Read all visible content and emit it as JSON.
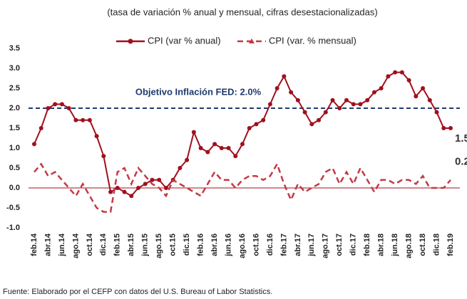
{
  "chart_data": {
    "type": "line",
    "subtitle": "(tasa de variación % anual y mensual, cifras desestacionalizadas)",
    "source": "Fuente: Elaborado por el CEFP con datos del U.S. Bureau of Labor Statistics.",
    "categories": [
      "feb.14",
      null,
      "abr.14",
      null,
      "jun.14",
      null,
      "ago.14",
      null,
      "oct.14",
      null,
      "dic.14",
      null,
      "feb.15",
      null,
      "abr.15",
      null,
      "jun.15",
      null,
      "ago.15",
      null,
      "oct.15",
      null,
      "dic.15",
      null,
      "feb.16",
      null,
      "abr.16",
      null,
      "jun.16",
      null,
      "ago.16",
      null,
      "oct.16",
      null,
      "dic.16",
      null,
      "feb.17",
      null,
      "abr.17",
      null,
      "jun.17",
      null,
      "ago.17",
      null,
      "oct.17",
      null,
      "dic.17",
      null,
      "feb.18",
      null,
      "abr.18",
      null,
      "jun.18",
      null,
      "ago.18",
      null,
      "oct.18",
      null,
      "dic.18",
      null,
      "feb.19"
    ],
    "series": [
      {
        "name": "CPI (var % anual)",
        "color": "#a0101e",
        "dashed": false,
        "markers": true,
        "values": [
          1.1,
          1.5,
          2.0,
          2.1,
          2.1,
          2.0,
          1.7,
          1.7,
          1.7,
          1.3,
          0.8,
          -0.1,
          0.0,
          -0.1,
          -0.2,
          0.0,
          0.1,
          0.2,
          0.2,
          0.0,
          0.2,
          0.5,
          0.7,
          1.4,
          1.0,
          0.9,
          1.1,
          1.0,
          1.0,
          0.8,
          1.1,
          1.5,
          1.6,
          1.7,
          2.1,
          2.5,
          2.8,
          2.4,
          2.2,
          1.9,
          1.6,
          1.7,
          1.9,
          2.2,
          2.0,
          2.2,
          2.1,
          2.1,
          2.2,
          2.4,
          2.5,
          2.8,
          2.9,
          2.9,
          2.7,
          2.3,
          2.5,
          2.2,
          1.9,
          1.5,
          1.5
        ]
      },
      {
        "name": "CPI (var. % mensual)",
        "color": "#c23a44",
        "dashed": true,
        "markers": false,
        "values": [
          0.4,
          0.6,
          0.3,
          0.4,
          0.2,
          0.0,
          -0.2,
          0.1,
          -0.2,
          -0.5,
          -0.6,
          -0.6,
          0.4,
          0.5,
          0.1,
          0.5,
          0.3,
          0.1,
          0.0,
          -0.2,
          0.2,
          0.1,
          0.0,
          -0.1,
          -0.2,
          0.1,
          0.4,
          0.2,
          0.2,
          0.0,
          0.2,
          0.3,
          0.3,
          0.2,
          0.3,
          0.6,
          0.1,
          -0.3,
          0.1,
          -0.1,
          0.0,
          0.1,
          0.4,
          0.5,
          0.1,
          0.4,
          0.1,
          0.5,
          0.2,
          -0.1,
          0.2,
          0.2,
          0.1,
          0.2,
          0.2,
          0.1,
          0.3,
          0.0,
          0.0,
          0.0,
          0.2
        ]
      }
    ],
    "target": {
      "label": "Objetivo Inflación FED: 2.0%",
      "value": 2.0,
      "color": "#1f3a6e"
    },
    "ylim": [
      -1.0,
      3.5
    ],
    "yticks": [
      {
        "value": 3.5,
        "label": "3.5"
      },
      {
        "value": 3,
        "label": "3.0"
      },
      2.5,
      {
        "value": 2,
        "label": "2.0"
      },
      1.5,
      {
        "value": 1,
        "label": "1.0"
      },
      0.5,
      {
        "value": 0,
        "label": "0.0"
      },
      -0.5,
      {
        "value": -1,
        "label": "-1.0"
      }
    ],
    "grid": false
  }
}
